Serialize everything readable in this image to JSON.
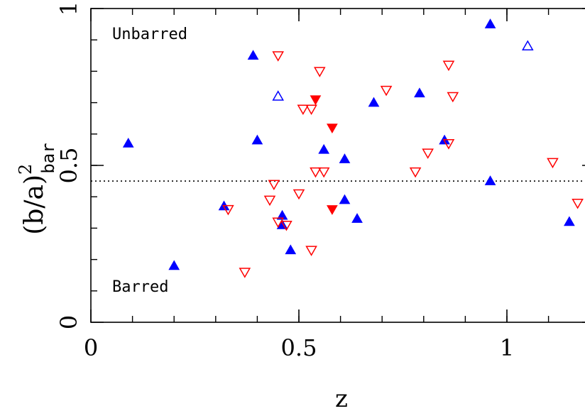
{
  "chart_data": {
    "type": "scatter",
    "xlabel": "z",
    "ylabel_main": "(b/a)",
    "ylabel_sup": "2",
    "ylabel_sub": "bar",
    "xlim": [
      0,
      1.2
    ],
    "ylim": [
      0,
      1
    ],
    "x_ticks": [
      {
        "value": 0,
        "label": "0"
      },
      {
        "value": 0.5,
        "label": "0.5"
      },
      {
        "value": 1,
        "label": "1"
      }
    ],
    "y_ticks": [
      {
        "value": 0,
        "label": "0"
      },
      {
        "value": 0.5,
        "label": "0.5"
      },
      {
        "value": 1,
        "label": "1"
      }
    ],
    "threshold_y": 0.45,
    "grid": false,
    "annotations": {
      "top": "Unbarred",
      "bottom": "Barred"
    },
    "series": [
      {
        "color": "#0000ff",
        "marker": "triangle-up-filled",
        "points": [
          [
            0.09,
            0.57
          ],
          [
            0.2,
            0.18
          ],
          [
            0.32,
            0.37
          ],
          [
            0.39,
            0.85
          ],
          [
            0.4,
            0.58
          ],
          [
            0.46,
            0.34
          ],
          [
            0.46,
            0.31
          ],
          [
            0.48,
            0.23
          ],
          [
            0.56,
            0.55
          ],
          [
            0.61,
            0.52
          ],
          [
            0.61,
            0.39
          ],
          [
            0.64,
            0.33
          ],
          [
            0.68,
            0.7
          ],
          [
            0.79,
            0.73
          ],
          [
            0.85,
            0.58
          ],
          [
            0.96,
            0.95
          ],
          [
            0.96,
            0.45
          ],
          [
            1.15,
            0.32
          ]
        ]
      },
      {
        "color": "#0000ff",
        "marker": "triangle-up-open",
        "points": [
          [
            0.45,
            0.72
          ],
          [
            1.05,
            0.88
          ]
        ]
      },
      {
        "color": "#ff0000",
        "marker": "triangle-down-filled",
        "points": [
          [
            0.54,
            0.71
          ],
          [
            0.58,
            0.62
          ],
          [
            0.58,
            0.36
          ]
        ]
      },
      {
        "color": "#ff0000",
        "marker": "triangle-down-open",
        "points": [
          [
            0.33,
            0.36
          ],
          [
            0.37,
            0.16
          ],
          [
            0.43,
            0.39
          ],
          [
            0.44,
            0.44
          ],
          [
            0.45,
            0.85
          ],
          [
            0.45,
            0.32
          ],
          [
            0.47,
            0.31
          ],
          [
            0.5,
            0.41
          ],
          [
            0.51,
            0.68
          ],
          [
            0.53,
            0.68
          ],
          [
            0.53,
            0.23
          ],
          [
            0.54,
            0.48
          ],
          [
            0.55,
            0.8
          ],
          [
            0.56,
            0.48
          ],
          [
            0.71,
            0.74
          ],
          [
            0.78,
            0.48
          ],
          [
            0.81,
            0.54
          ],
          [
            0.86,
            0.57
          ],
          [
            0.86,
            0.82
          ],
          [
            0.87,
            0.72
          ],
          [
            1.11,
            0.51
          ],
          [
            1.17,
            0.38
          ]
        ]
      }
    ]
  }
}
